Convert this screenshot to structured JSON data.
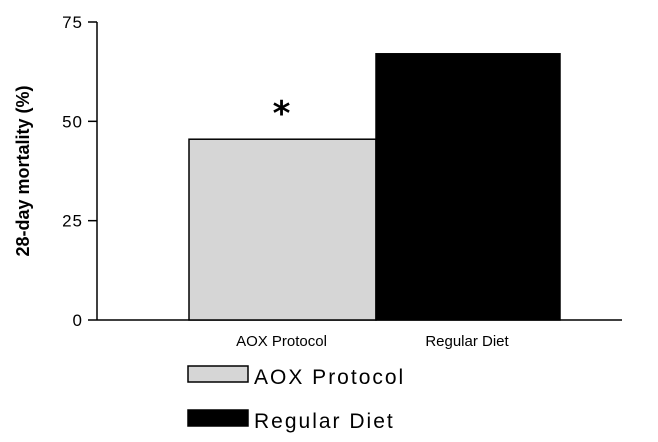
{
  "chart_data": {
    "type": "bar",
    "categories": [
      "AOX Protocol",
      "Regular Diet"
    ],
    "values": [
      45.5,
      67
    ],
    "ylabel": "28-day mortality (%)",
    "xlabel": "",
    "ylim": [
      0,
      75
    ],
    "yticks": [
      0,
      25,
      50,
      75
    ],
    "grid": false,
    "legend": {
      "placement": "bottom-left",
      "entries": [
        "AOX Protocol",
        "Regular Diet"
      ]
    },
    "annotations": [
      {
        "category": "AOX Protocol",
        "text": "*"
      }
    ],
    "colors": [
      "#d6d6d6",
      "#000000"
    ],
    "edge_color": "#000000"
  }
}
